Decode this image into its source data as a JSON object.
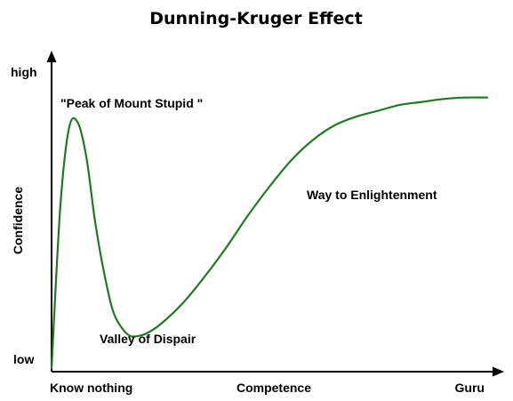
{
  "chart_data": {
    "type": "line",
    "title": "Dunning-Kruger Effect",
    "xlabel": "Competence",
    "ylabel": "Confidence",
    "x_tick_labels": [
      "Know nothing",
      "Guru"
    ],
    "y_tick_labels": [
      "high",
      "low"
    ],
    "xlim": [
      0,
      100
    ],
    "ylim": [
      0,
      100
    ],
    "grid": false,
    "colors": {
      "curve": "#1e7a1e",
      "axes": "#000000"
    },
    "series": [
      {
        "x": [
          0,
          2,
          4,
          6,
          8,
          10,
          12,
          14,
          16,
          18,
          20,
          22,
          25,
          30,
          35,
          40,
          45,
          50,
          55,
          60,
          65,
          70,
          75,
          80,
          85,
          90,
          95,
          100
        ],
        "y": [
          0,
          55,
          82,
          84,
          72,
          50,
          33,
          20,
          14,
          11,
          11,
          12,
          15,
          22,
          31,
          41,
          52,
          62,
          71,
          78,
          83,
          86,
          88,
          90,
          91,
          92,
          92.5,
          92.5
        ]
      }
    ],
    "annotations": [
      {
        "text": "\"Peak of Mount Stupid \"",
        "x": 2,
        "y": 87
      },
      {
        "text": "Way to Enlightenment",
        "x": 58,
        "y": 55
      },
      {
        "text": "Valley of Dispair",
        "x": 10,
        "y": 4
      }
    ]
  }
}
